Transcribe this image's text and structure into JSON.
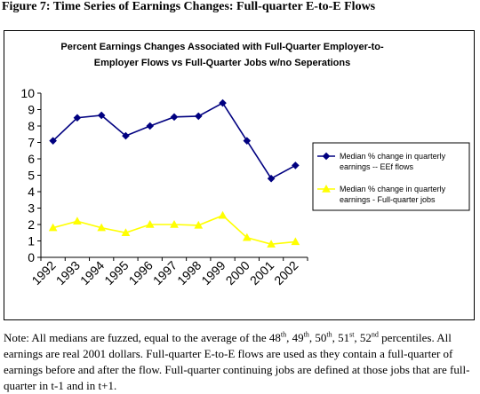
{
  "figure_title": "Figure 7: Time Series of Earnings Changes: Full-quarter E-to-E Flows",
  "chart_data": {
    "type": "line",
    "title_line1": "Percent Earnings Changes Associated with Full-Quarter Employer-to-",
    "title_line2": "Employer Flows vs Full-Quarter Jobs w/no Seperations",
    "categories": [
      "1992",
      "1993",
      "1994",
      "1995",
      "1996",
      "1997",
      "1998",
      "1999",
      "2000",
      "2001",
      "2002"
    ],
    "ylim": [
      0,
      10
    ],
    "yticks": [
      "0",
      "1",
      "2",
      "3",
      "4",
      "5",
      "6",
      "7",
      "8",
      "9",
      "10"
    ],
    "grid": false,
    "legend_position": "right",
    "series": [
      {
        "name_line1": "Median % change in quarterly",
        "name_line2": "earnings -- EEf flows",
        "color": "#000080",
        "marker": "diamond",
        "values": [
          7.1,
          8.5,
          8.65,
          7.4,
          8.0,
          8.55,
          8.6,
          9.4,
          7.1,
          4.8,
          5.6
        ]
      },
      {
        "name_line1": "Median % change in quarterly",
        "name_line2": "earnings - Full-quarter jobs",
        "color": "#ffff00",
        "marker": "triangle",
        "values": [
          1.8,
          2.2,
          1.8,
          1.5,
          2.0,
          2.0,
          1.95,
          2.55,
          1.2,
          0.8,
          0.95
        ]
      }
    ]
  },
  "note": {
    "p1": "Note: All medians are fuzzed, equal to the average of the 48",
    "s1": "th",
    "p2": ", 49",
    "s2": "th",
    "p3": ", 50",
    "s3": "th",
    "p4": ", 51",
    "s4": "st",
    "p5": ", 52",
    "s5": "nd",
    "p6": "percentiles.  All earnings are real 2001 dollars.  Full-quarter E-to-E flows are used as they contain a full-quarter of earnings before and after the flow.  Full-quarter continuing jobs are defined at those jobs that are full-quarter in t-1 and in t+1."
  }
}
